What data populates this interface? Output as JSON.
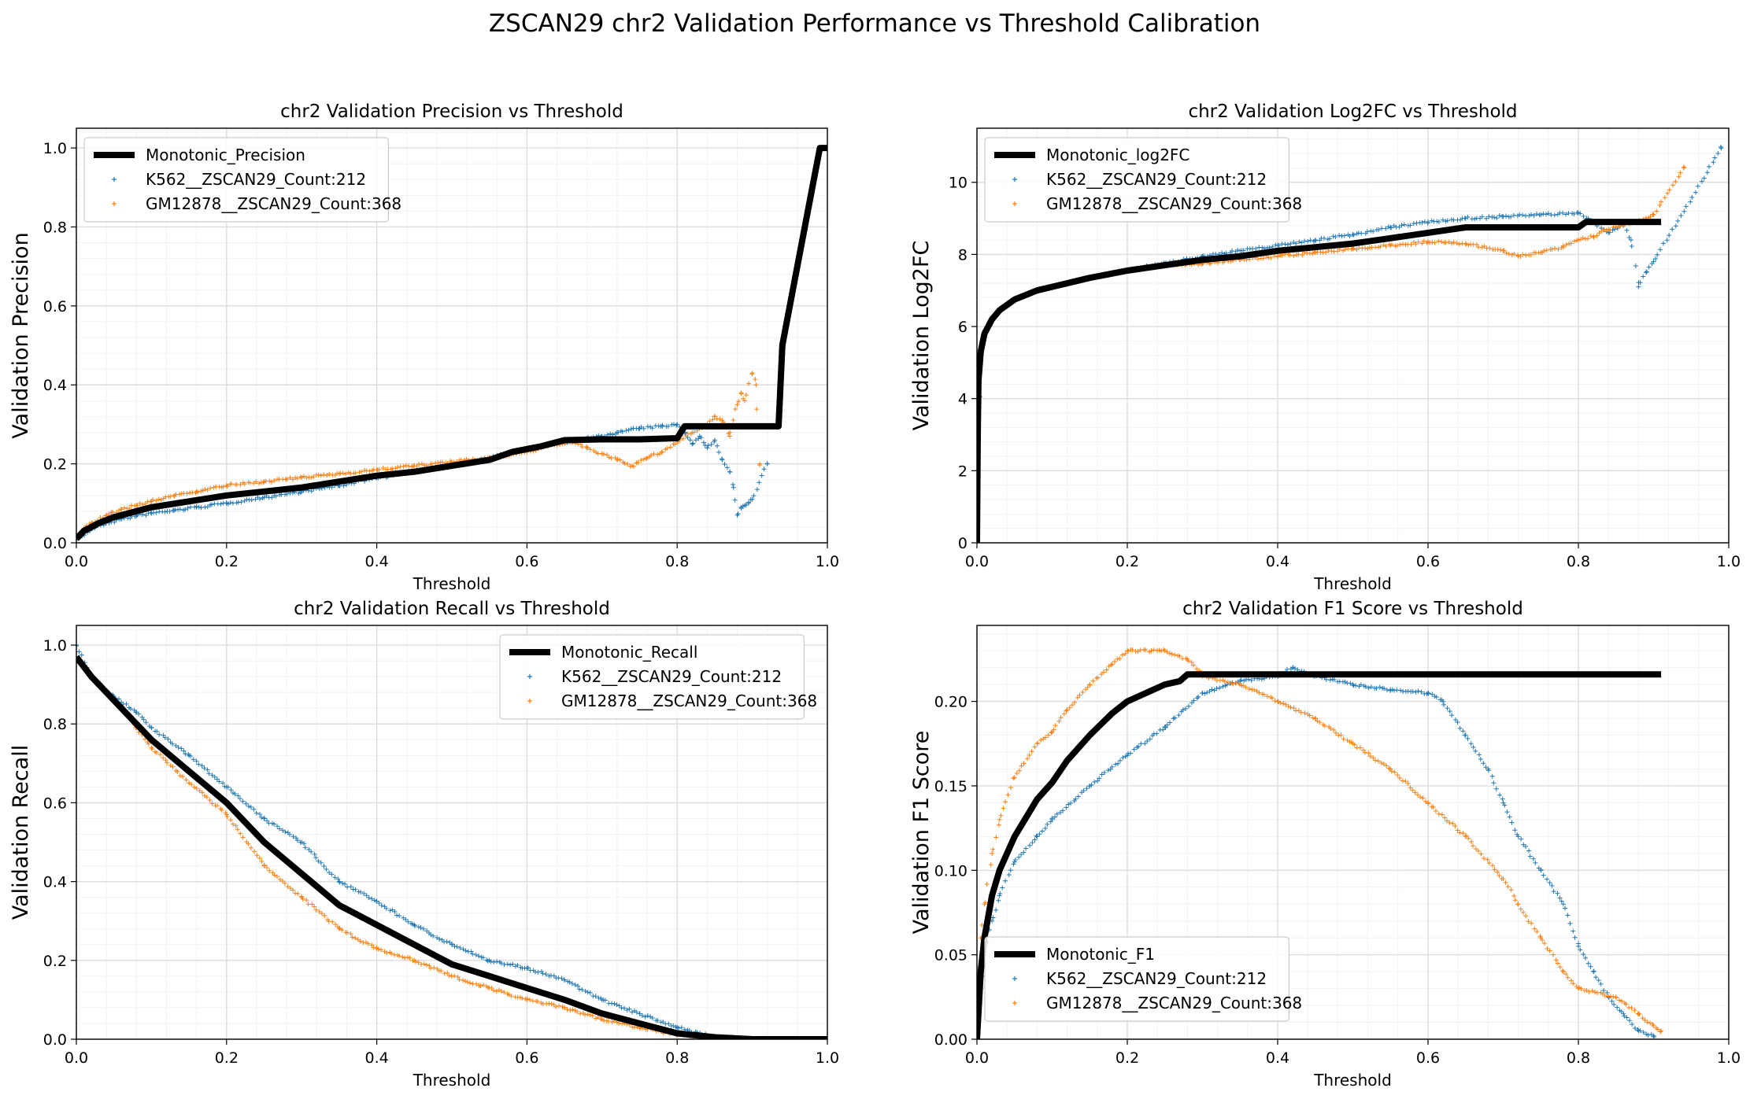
{
  "suptitle": "ZSCAN29 chr2 Validation Performance vs Threshold Calibration",
  "colors": {
    "monotonic": "#000000",
    "k562": "#1f77b4",
    "gm12878": "#ff7f0e",
    "grid": "#dddddd",
    "minor_grid": "#f2f2f2"
  },
  "chart_data": [
    {
      "type": "scatter",
      "id": "precision",
      "title": "chr2 Validation Precision vs Threshold",
      "xlabel": "Threshold",
      "ylabel": "Validation Precision",
      "xlim": [
        0,
        1
      ],
      "ylim": [
        0,
        1.05
      ],
      "xticks": [
        0.0,
        0.2,
        0.4,
        0.6,
        0.8,
        1.0
      ],
      "yticks": [
        0.0,
        0.2,
        0.4,
        0.6,
        0.8,
        1.0
      ],
      "grid": true,
      "legend": "upper-left",
      "series": [
        {
          "name": "Monotonic_Precision",
          "style": "line",
          "color": "#000000",
          "x": [
            0.0,
            0.01,
            0.03,
            0.05,
            0.1,
            0.15,
            0.2,
            0.25,
            0.3,
            0.35,
            0.4,
            0.45,
            0.5,
            0.55,
            0.58,
            0.62,
            0.65,
            0.7,
            0.75,
            0.8,
            0.81,
            0.85,
            0.9,
            0.935,
            0.94,
            0.945,
            0.96,
            0.98,
            0.99,
            1.0
          ],
          "y": [
            0.01,
            0.03,
            0.05,
            0.065,
            0.09,
            0.105,
            0.12,
            0.13,
            0.14,
            0.155,
            0.17,
            0.18,
            0.195,
            0.21,
            0.23,
            0.245,
            0.26,
            0.262,
            0.262,
            0.265,
            0.295,
            0.295,
            0.295,
            0.295,
            0.5,
            0.55,
            0.7,
            0.9,
            1.0,
            1.0
          ]
        },
        {
          "name": "K562__ZSCAN29_Count:212",
          "style": "scatter",
          "color": "#1f77b4",
          "x": [
            0.0,
            0.01,
            0.02,
            0.04,
            0.06,
            0.08,
            0.1,
            0.13,
            0.16,
            0.2,
            0.25,
            0.3,
            0.35,
            0.4,
            0.45,
            0.5,
            0.55,
            0.6,
            0.65,
            0.7,
            0.72,
            0.75,
            0.78,
            0.8,
            0.81,
            0.82,
            0.83,
            0.84,
            0.85,
            0.86,
            0.87,
            0.875,
            0.88,
            0.885,
            0.89,
            0.895,
            0.9,
            0.92
          ],
          "y": [
            0.01,
            0.02,
            0.035,
            0.05,
            0.06,
            0.068,
            0.075,
            0.082,
            0.09,
            0.1,
            0.115,
            0.13,
            0.145,
            0.165,
            0.18,
            0.195,
            0.215,
            0.235,
            0.255,
            0.27,
            0.28,
            0.29,
            0.295,
            0.3,
            0.28,
            0.25,
            0.27,
            0.24,
            0.26,
            0.21,
            0.18,
            0.14,
            0.07,
            0.09,
            0.095,
            0.1,
            0.11,
            0.2
          ]
        },
        {
          "name": "GM12878__ZSCAN29_Count:368",
          "style": "scatter",
          "color": "#ff7f0e",
          "x": [
            0.0,
            0.01,
            0.02,
            0.04,
            0.06,
            0.08,
            0.1,
            0.13,
            0.16,
            0.2,
            0.25,
            0.3,
            0.35,
            0.4,
            0.45,
            0.5,
            0.55,
            0.6,
            0.64,
            0.66,
            0.68,
            0.7,
            0.72,
            0.74,
            0.76,
            0.78,
            0.8,
            0.82,
            0.84,
            0.85,
            0.86,
            0.87,
            0.88,
            0.885,
            0.89,
            0.9,
            0.905,
            0.91
          ],
          "y": [
            0.015,
            0.035,
            0.05,
            0.07,
            0.085,
            0.095,
            0.105,
            0.12,
            0.13,
            0.145,
            0.155,
            0.165,
            0.175,
            0.185,
            0.195,
            0.205,
            0.215,
            0.23,
            0.25,
            0.255,
            0.24,
            0.225,
            0.21,
            0.195,
            0.215,
            0.23,
            0.255,
            0.28,
            0.3,
            0.32,
            0.31,
            0.27,
            0.35,
            0.38,
            0.36,
            0.43,
            0.4,
            0.2
          ]
        }
      ]
    },
    {
      "type": "scatter",
      "id": "log2fc",
      "title": "chr2 Validation Log2FC vs Threshold",
      "xlabel": "Threshold",
      "ylabel": "Validation Log2FC",
      "xlim": [
        0,
        1
      ],
      "ylim": [
        0,
        11.5
      ],
      "xticks": [
        0.0,
        0.2,
        0.4,
        0.6,
        0.8,
        1.0
      ],
      "yticks": [
        0,
        2,
        4,
        6,
        8,
        10
      ],
      "grid": true,
      "legend": "upper-left",
      "series": [
        {
          "name": "Monotonic_log2FC",
          "style": "line",
          "color": "#000000",
          "x": [
            0.0,
            0.001,
            0.002,
            0.005,
            0.01,
            0.02,
            0.03,
            0.05,
            0.08,
            0.1,
            0.15,
            0.2,
            0.25,
            0.3,
            0.35,
            0.4,
            0.45,
            0.5,
            0.55,
            0.6,
            0.65,
            0.7,
            0.75,
            0.8,
            0.81,
            0.85,
            0.91
          ],
          "y": [
            0.0,
            3.0,
            4.5,
            5.3,
            5.8,
            6.2,
            6.45,
            6.75,
            7.0,
            7.1,
            7.35,
            7.55,
            7.7,
            7.85,
            7.95,
            8.1,
            8.2,
            8.3,
            8.45,
            8.6,
            8.75,
            8.75,
            8.75,
            8.75,
            8.9,
            8.9,
            8.9
          ]
        },
        {
          "name": "K562__ZSCAN29_Count:212",
          "style": "scatter",
          "color": "#1f77b4",
          "x": [
            0.0,
            0.005,
            0.01,
            0.02,
            0.03,
            0.05,
            0.08,
            0.1,
            0.15,
            0.2,
            0.25,
            0.3,
            0.35,
            0.4,
            0.45,
            0.5,
            0.55,
            0.6,
            0.65,
            0.7,
            0.75,
            0.8,
            0.82,
            0.84,
            0.86,
            0.87,
            0.88,
            0.89,
            0.9,
            0.99
          ],
          "y": [
            0.0,
            5.3,
            5.8,
            6.2,
            6.45,
            6.75,
            7.0,
            7.1,
            7.35,
            7.55,
            7.75,
            7.95,
            8.1,
            8.25,
            8.4,
            8.55,
            8.75,
            8.9,
            9.0,
            9.05,
            9.1,
            9.15,
            8.9,
            8.6,
            8.8,
            8.4,
            7.1,
            7.5,
            7.8,
            10.95
          ]
        },
        {
          "name": "GM12878__ZSCAN29_Count:368",
          "style": "scatter",
          "color": "#ff7f0e",
          "x": [
            0.0,
            0.005,
            0.01,
            0.02,
            0.03,
            0.05,
            0.08,
            0.1,
            0.15,
            0.2,
            0.25,
            0.3,
            0.35,
            0.4,
            0.45,
            0.5,
            0.55,
            0.6,
            0.65,
            0.7,
            0.72,
            0.75,
            0.78,
            0.8,
            0.82,
            0.84,
            0.86,
            0.88,
            0.9,
            0.94
          ],
          "y": [
            0.0,
            5.3,
            5.8,
            6.2,
            6.45,
            6.75,
            7.0,
            7.1,
            7.35,
            7.55,
            7.7,
            7.75,
            7.85,
            7.95,
            8.05,
            8.15,
            8.25,
            8.35,
            8.3,
            8.1,
            7.95,
            8.05,
            8.2,
            8.4,
            8.5,
            8.7,
            8.8,
            8.9,
            9.1,
            10.4
          ]
        }
      ]
    },
    {
      "type": "scatter",
      "id": "recall",
      "title": "chr2 Validation Recall vs Threshold",
      "xlabel": "Threshold",
      "ylabel": "Validation Recall",
      "xlim": [
        0,
        1
      ],
      "ylim": [
        0,
        1.05
      ],
      "xticks": [
        0.0,
        0.2,
        0.4,
        0.6,
        0.8,
        1.0
      ],
      "yticks": [
        0.0,
        0.2,
        0.4,
        0.6,
        0.8,
        1.0
      ],
      "grid": true,
      "legend": "upper-right",
      "series": [
        {
          "name": "Monotonic_Recall",
          "style": "line",
          "color": "#000000",
          "x": [
            0.0,
            0.02,
            0.05,
            0.08,
            0.1,
            0.15,
            0.2,
            0.25,
            0.3,
            0.35,
            0.4,
            0.45,
            0.5,
            0.55,
            0.6,
            0.65,
            0.7,
            0.75,
            0.8,
            0.85,
            0.9,
            1.0
          ],
          "y": [
            0.97,
            0.92,
            0.86,
            0.8,
            0.76,
            0.68,
            0.6,
            0.5,
            0.42,
            0.34,
            0.29,
            0.24,
            0.19,
            0.16,
            0.13,
            0.1,
            0.065,
            0.04,
            0.015,
            0.005,
            0.0,
            0.0
          ]
        },
        {
          "name": "K562__ZSCAN29_Count:212",
          "style": "scatter",
          "color": "#1f77b4",
          "x": [
            0.0,
            0.02,
            0.05,
            0.08,
            0.1,
            0.15,
            0.2,
            0.25,
            0.3,
            0.35,
            0.4,
            0.45,
            0.5,
            0.55,
            0.6,
            0.65,
            0.7,
            0.75,
            0.8,
            0.85,
            0.9
          ],
          "y": [
            1.0,
            0.92,
            0.87,
            0.83,
            0.79,
            0.72,
            0.64,
            0.56,
            0.5,
            0.4,
            0.35,
            0.29,
            0.24,
            0.2,
            0.18,
            0.15,
            0.1,
            0.065,
            0.03,
            0.005,
            0.0
          ]
        },
        {
          "name": "GM12878__ZSCAN29_Count:368",
          "style": "scatter",
          "color": "#ff7f0e",
          "x": [
            0.0,
            0.02,
            0.05,
            0.08,
            0.1,
            0.15,
            0.2,
            0.25,
            0.3,
            0.35,
            0.4,
            0.45,
            0.5,
            0.55,
            0.6,
            0.65,
            0.7,
            0.75,
            0.8,
            0.85,
            0.9
          ],
          "y": [
            0.97,
            0.92,
            0.86,
            0.79,
            0.74,
            0.65,
            0.57,
            0.44,
            0.36,
            0.28,
            0.23,
            0.2,
            0.16,
            0.13,
            0.1,
            0.08,
            0.05,
            0.03,
            0.01,
            0.0,
            0.0
          ]
        }
      ]
    },
    {
      "type": "scatter",
      "id": "f1",
      "title": "chr2 Validation F1 Score vs Threshold",
      "xlabel": "Threshold",
      "ylabel": "Validation F1 Score",
      "xlim": [
        0,
        1
      ],
      "ylim": [
        0,
        0.245
      ],
      "xticks": [
        0.0,
        0.2,
        0.4,
        0.6,
        0.8,
        1.0
      ],
      "yticks": [
        0.0,
        0.05,
        0.1,
        0.15,
        0.2
      ],
      "grid": true,
      "legend": "lower-left",
      "series": [
        {
          "name": "Monotonic_F1",
          "style": "line",
          "color": "#000000",
          "x": [
            0.0,
            0.005,
            0.01,
            0.02,
            0.03,
            0.05,
            0.08,
            0.1,
            0.12,
            0.15,
            0.18,
            0.2,
            0.22,
            0.25,
            0.27,
            0.28,
            0.3,
            0.5,
            0.7,
            0.91
          ],
          "y": [
            0.0,
            0.04,
            0.06,
            0.085,
            0.1,
            0.12,
            0.142,
            0.152,
            0.165,
            0.18,
            0.193,
            0.2,
            0.204,
            0.21,
            0.212,
            0.216,
            0.216,
            0.216,
            0.216,
            0.216
          ]
        },
        {
          "name": "K562__ZSCAN29_Count:212",
          "style": "scatter",
          "color": "#1f77b4",
          "x": [
            0.0,
            0.005,
            0.01,
            0.02,
            0.03,
            0.05,
            0.08,
            0.1,
            0.15,
            0.2,
            0.25,
            0.3,
            0.35,
            0.4,
            0.42,
            0.45,
            0.5,
            0.55,
            0.6,
            0.62,
            0.65,
            0.68,
            0.7,
            0.72,
            0.75,
            0.78,
            0.8,
            0.82,
            0.84,
            0.86,
            0.88,
            0.9
          ],
          "y": [
            0.0,
            0.03,
            0.05,
            0.07,
            0.085,
            0.105,
            0.12,
            0.13,
            0.15,
            0.168,
            0.185,
            0.205,
            0.212,
            0.215,
            0.22,
            0.215,
            0.21,
            0.207,
            0.205,
            0.2,
            0.18,
            0.16,
            0.14,
            0.12,
            0.1,
            0.08,
            0.055,
            0.04,
            0.025,
            0.015,
            0.005,
            0.002
          ]
        },
        {
          "name": "GM12878__ZSCAN29_Count:368",
          "style": "scatter",
          "color": "#ff7f0e",
          "x": [
            0.0,
            0.005,
            0.01,
            0.02,
            0.03,
            0.05,
            0.08,
            0.1,
            0.12,
            0.15,
            0.18,
            0.2,
            0.25,
            0.28,
            0.3,
            0.35,
            0.4,
            0.45,
            0.5,
            0.55,
            0.6,
            0.65,
            0.7,
            0.72,
            0.75,
            0.78,
            0.8,
            0.85,
            0.88,
            0.9,
            0.91
          ],
          "y": [
            0.0,
            0.06,
            0.08,
            0.11,
            0.13,
            0.155,
            0.175,
            0.182,
            0.195,
            0.21,
            0.222,
            0.23,
            0.23,
            0.225,
            0.215,
            0.21,
            0.2,
            0.19,
            0.175,
            0.16,
            0.14,
            0.12,
            0.095,
            0.08,
            0.06,
            0.04,
            0.03,
            0.025,
            0.015,
            0.008,
            0.005
          ]
        }
      ]
    }
  ]
}
